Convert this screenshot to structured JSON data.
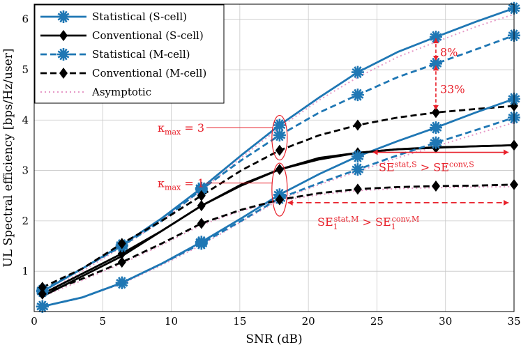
{
  "chart_data": {
    "type": "line",
    "xlabel": "SNR (dB)",
    "ylabel": "UL Spectral efficiency [bps/Hz/user]",
    "xlim": [
      0,
      35
    ],
    "ylim": [
      0.2,
      6.3
    ],
    "xticks": [
      0,
      5,
      10,
      15,
      20,
      25,
      30,
      35
    ],
    "yticks": [
      1,
      2,
      3,
      4,
      5,
      6
    ],
    "grid": true,
    "legend": {
      "placement": "top-left"
    },
    "colors": {
      "statistical": "#1f77b4",
      "conventional": "#000000",
      "asymptotic": "#e699c6",
      "annotation": "#e8202a"
    },
    "series": [
      {
        "name": "Statistical (S-cell)",
        "style": "solid",
        "marker": "star",
        "color": "#1f77b4",
        "x": [
          0.6,
          3.5,
          6.4,
          9.3,
          12.2,
          15.1,
          17.9,
          20.8,
          23.6,
          26.5,
          29.3,
          32.2,
          35
        ],
        "y": [
          0.6,
          1.05,
          1.52,
          2.05,
          2.65,
          3.3,
          3.9,
          4.45,
          4.95,
          5.35,
          5.65,
          5.95,
          6.22
        ],
        "marked": [
          true,
          false,
          true,
          false,
          true,
          false,
          true,
          false,
          true,
          false,
          true,
          false,
          true
        ]
      },
      {
        "name": "Conventional (S-cell)",
        "style": "solid",
        "marker": "diamond",
        "color": "#000000",
        "x": [
          0.6,
          3.5,
          6.4,
          9.3,
          12.2,
          15.1,
          17.9,
          20.8,
          23.6,
          26.5,
          29.3,
          32.2,
          35
        ],
        "y": [
          0.55,
          0.95,
          1.35,
          1.8,
          2.3,
          2.7,
          3.02,
          3.25,
          3.35,
          3.42,
          3.45,
          3.48,
          3.5
        ],
        "marked": [
          true,
          false,
          true,
          false,
          true,
          false,
          true,
          false,
          true,
          false,
          true,
          false,
          true
        ]
      },
      {
        "name": "Statistical (M-cell)",
        "style": "dashed",
        "marker": "star",
        "color": "#1f77b4",
        "x": [
          0.6,
          3.5,
          6.4,
          9.3,
          12.2,
          15.1,
          17.9,
          20.8,
          23.6,
          26.5,
          29.3,
          32.2,
          35
        ],
        "y": [
          0.62,
          1.05,
          1.5,
          2.0,
          2.62,
          3.2,
          3.7,
          4.15,
          4.5,
          4.85,
          5.12,
          5.4,
          5.68
        ],
        "marked": [
          true,
          false,
          true,
          false,
          true,
          false,
          true,
          false,
          true,
          false,
          true,
          false,
          true
        ]
      },
      {
        "name": "Conventional (M-cell)",
        "style": "dashed",
        "marker": "diamond",
        "color": "#000000",
        "x": [
          0.6,
          3.5,
          6.4,
          9.3,
          12.2,
          15.1,
          17.9,
          20.8,
          23.6,
          26.5,
          29.3,
          32.2,
          35
        ],
        "y": [
          0.68,
          1.05,
          1.55,
          2.0,
          2.5,
          3.0,
          3.4,
          3.7,
          3.9,
          4.05,
          4.15,
          4.22,
          4.28
        ],
        "marked": [
          true,
          false,
          true,
          false,
          true,
          false,
          true,
          false,
          true,
          false,
          true,
          false,
          true
        ]
      },
      {
        "name": "",
        "style": "solid",
        "marker": "star",
        "color": "#1f77b4",
        "x": [
          0.6,
          3.5,
          6.4,
          9.3,
          12.2,
          15.1,
          17.9,
          20.8,
          23.6,
          26.5,
          29.3,
          32.2,
          35
        ],
        "y": [
          0.3,
          0.48,
          0.77,
          1.15,
          1.58,
          2.05,
          2.52,
          2.93,
          3.28,
          3.58,
          3.85,
          4.15,
          4.42
        ],
        "marked": [
          true,
          false,
          true,
          false,
          true,
          false,
          true,
          false,
          true,
          false,
          true,
          false,
          true
        ]
      },
      {
        "name": "",
        "style": "solid",
        "marker": "diamond",
        "color": "#000000",
        "x": [
          0.6,
          3.5,
          6.4,
          9.3,
          12.2,
          15.1,
          17.9,
          20.8,
          23.6,
          26.5,
          29.3,
          32.2,
          35
        ],
        "y": [
          0.5,
          0.9,
          1.3,
          1.8,
          2.3,
          2.72,
          3.02,
          3.22,
          3.35,
          3.42,
          3.46,
          3.48,
          3.5
        ],
        "marked": [
          false,
          false,
          false,
          false,
          false,
          false,
          false,
          false,
          false,
          false,
          false,
          false,
          false
        ]
      },
      {
        "name": "",
        "style": "dashed",
        "marker": "star",
        "color": "#1f77b4",
        "x": [
          0.6,
          3.5,
          6.4,
          9.3,
          12.2,
          15.1,
          17.9,
          20.8,
          23.6,
          26.5,
          29.3,
          32.2,
          35
        ],
        "y": [
          0.3,
          0.48,
          0.77,
          1.15,
          1.55,
          2.0,
          2.45,
          2.75,
          3.02,
          3.3,
          3.55,
          3.8,
          4.05
        ],
        "marked": [
          true,
          false,
          true,
          false,
          true,
          false,
          true,
          false,
          true,
          false,
          true,
          false,
          true
        ]
      },
      {
        "name": "",
        "style": "dashed",
        "marker": "diamond",
        "color": "#000000",
        "x": [
          0.6,
          3.5,
          6.4,
          9.3,
          12.2,
          15.1,
          17.9,
          20.8,
          23.6,
          26.5,
          29.3,
          32.2,
          35
        ],
        "y": [
          0.55,
          0.85,
          1.18,
          1.55,
          1.95,
          2.22,
          2.42,
          2.55,
          2.63,
          2.67,
          2.69,
          2.7,
          2.72
        ],
        "marked": [
          true,
          false,
          true,
          false,
          true,
          false,
          true,
          false,
          true,
          false,
          true,
          false,
          true
        ]
      },
      {
        "name": "Asymptotic",
        "style": "dotted",
        "marker": "none",
        "color": "#e699c6",
        "x": [
          0.6,
          3.5,
          6.4,
          9.3,
          12.2,
          15.1,
          17.9,
          20.8,
          23.6,
          26.5,
          29.3,
          32.2,
          35
        ],
        "y": [
          0.55,
          1.0,
          1.48,
          2.0,
          2.6,
          3.25,
          3.85,
          4.4,
          4.85,
          5.25,
          5.55,
          5.85,
          6.1
        ],
        "marked": [
          false,
          false,
          false,
          false,
          false,
          false,
          false,
          false,
          false,
          false,
          false,
          false,
          false
        ]
      },
      {
        "name": "",
        "style": "dotted",
        "marker": "none",
        "color": "#e699c6",
        "x": [
          0.6,
          3.5,
          6.4,
          9.3,
          12.2,
          15.1,
          17.9,
          20.8,
          23.6,
          26.5,
          29.3,
          32.2,
          35
        ],
        "y": [
          0.3,
          0.48,
          0.75,
          1.12,
          1.52,
          1.98,
          2.42,
          2.72,
          2.98,
          3.25,
          3.48,
          3.72,
          3.95
        ],
        "marked": [
          false,
          false,
          false,
          false,
          false,
          false,
          false,
          false,
          false,
          false,
          false,
          false,
          false
        ]
      },
      {
        "name": "",
        "style": "dotted",
        "marker": "none",
        "color": "#e699c6",
        "x": [
          0.6,
          3.5,
          6.4,
          9.3,
          12.2,
          15.1,
          17.9,
          20.8,
          23.6,
          26.5,
          29.3,
          32.2,
          35
        ],
        "y": [
          0.5,
          0.82,
          1.15,
          1.52,
          1.92,
          2.2,
          2.4,
          2.52,
          2.6,
          2.64,
          2.66,
          2.67,
          2.68
        ],
        "marked": [
          false,
          false,
          false,
          false,
          false,
          false,
          false,
          false,
          false,
          false,
          false,
          false,
          false
        ]
      }
    ],
    "annotations": [
      {
        "id": "kmax3",
        "label": "κ",
        "sub": "max",
        "suffix": " = 3",
        "x": 17.9,
        "y": 3.85
      },
      {
        "id": "kmax1",
        "label": "κ",
        "sub": "max",
        "suffix": " = 1",
        "x": 17.9,
        "y": 2.75
      },
      {
        "id": "pct8",
        "label": "8%",
        "x": 29.3,
        "y": 5.4
      },
      {
        "id": "pct33",
        "label": "33%",
        "x": 29.3,
        "y": 4.6
      },
      {
        "id": "se_s",
        "label": "SE",
        "sup1": "stat,S",
        "mid": " > SE",
        "sup2": "conv,S",
        "x": 25,
        "y": 3.35
      },
      {
        "id": "se_m",
        "label": "SE",
        "sub1": "1",
        "sup1": "stat,M",
        "mid": " > SE",
        "sub2": "1",
        "sup2": "conv,M",
        "x": 18.5,
        "y": 2.25
      }
    ]
  }
}
